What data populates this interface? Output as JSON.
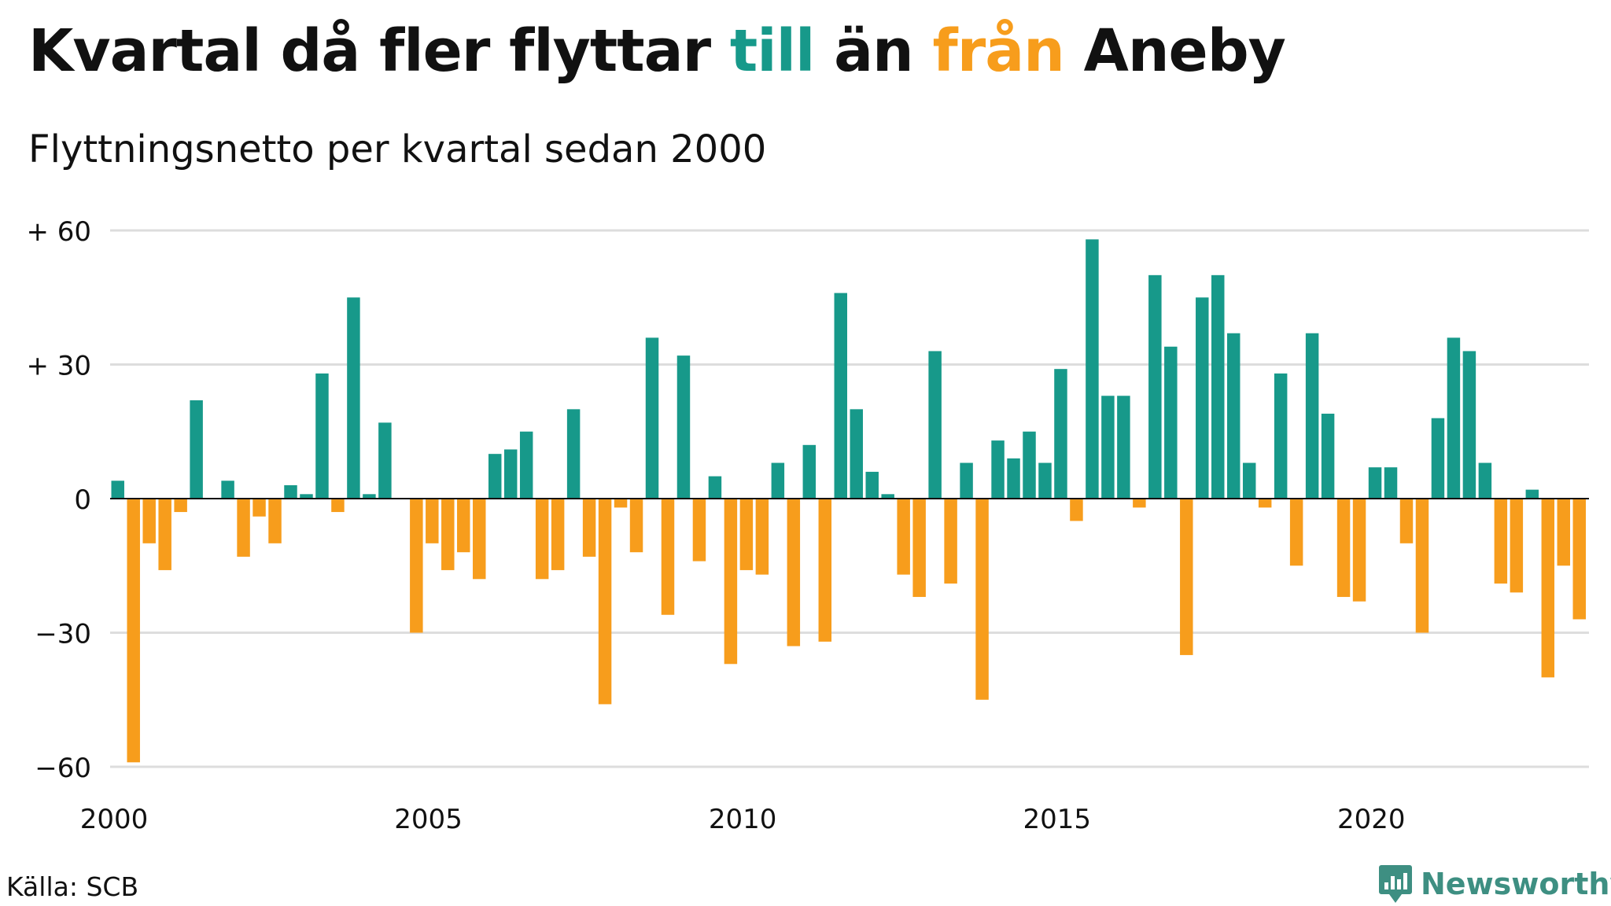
{
  "title": {
    "part1": "Kvartal då fler flyttar ",
    "highlight_in": "till",
    "part2": " än ",
    "highlight_out": "från",
    "part3": " Aneby"
  },
  "subtitle": "Flyttningsnetto per kvartal sedan 2000",
  "source": "Källa: SCB",
  "logo": {
    "text": "Newsworthy",
    "icon": "newsworthy-chart-icon"
  },
  "colors": {
    "positive": "#17998a",
    "negative": "#f79d1c",
    "grid": "#dddddd",
    "text": "#111111",
    "logo": "#3e8f82"
  },
  "chart_data": {
    "type": "bar",
    "title": "",
    "xlabel": "",
    "ylabel": "",
    "ylim": [
      -60,
      60
    ],
    "xlim": [
      2000,
      2023.5
    ],
    "yticks": [
      {
        "value": 60,
        "label": "+ 60"
      },
      {
        "value": 30,
        "label": "+ 30"
      },
      {
        "value": 0,
        "label": "0"
      },
      {
        "value": -30,
        "label": "−30"
      },
      {
        "value": -60,
        "label": "−60"
      }
    ],
    "xticks": [
      {
        "value": 2000,
        "label": "2000"
      },
      {
        "value": 2005,
        "label": "2005"
      },
      {
        "value": 2010,
        "label": "2010"
      },
      {
        "value": 2015,
        "label": "2015"
      },
      {
        "value": 2020,
        "label": "2020"
      }
    ],
    "grid": true,
    "legend": "none",
    "series": [
      {
        "start": "2000 Q1",
        "frequency": "quarterly",
        "values": [
          4,
          -59,
          -10,
          -16,
          -3,
          22,
          0,
          4,
          -13,
          -4,
          -10,
          3,
          1,
          28,
          -3,
          45,
          1,
          17,
          0,
          -30,
          -10,
          -16,
          -12,
          -18,
          10,
          11,
          15,
          -18,
          -16,
          20,
          -13,
          -46,
          -2,
          -12,
          36,
          -26,
          32,
          -14,
          5,
          -37,
          -16,
          -17,
          8,
          -33,
          12,
          -32,
          46,
          20,
          6,
          1,
          -17,
          -22,
          33,
          -19,
          8,
          -45,
          13,
          9,
          15,
          8,
          29,
          -5,
          58,
          23,
          23,
          -2,
          50,
          34,
          -35,
          45,
          50,
          37,
          8,
          -2,
          28,
          -15,
          37,
          19,
          -22,
          -23,
          7,
          7,
          -10,
          -30,
          18,
          36,
          33,
          8,
          -19,
          -21,
          2,
          -40,
          -15,
          -27
        ]
      }
    ]
  }
}
